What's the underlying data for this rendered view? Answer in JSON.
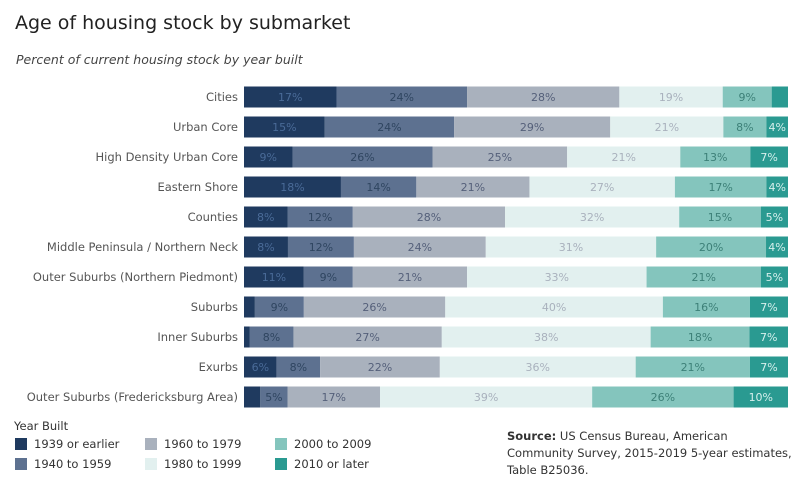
{
  "header": {
    "title": "Age of housing stock by submarket",
    "subtitle": "Percent of current housing stock by year built"
  },
  "legend": {
    "title": "Year Built"
  },
  "source": {
    "label": "Source:",
    "text": " US Census Bureau, American Community Survey, 2015-2019 5-year estimates, Table B25036."
  },
  "chart_data": {
    "type": "bar",
    "orientation": "horizontal",
    "stacked": true,
    "categories": [
      "Cities",
      "Urban Core",
      "High Density Urban Core",
      "Eastern Shore",
      "Counties",
      "Middle Peninsula / Northern Neck",
      "Outer Suburbs (Northern Piedmont)",
      "Suburbs",
      "Inner Suburbs",
      "Exurbs",
      "Outer Suburbs (Fredericksburg Area)"
    ],
    "unit": "%",
    "xlim": [
      0,
      100
    ],
    "legend_position": "bottom-left",
    "series": [
      {
        "name": "1939 or earlier",
        "color": "#1f3a5f",
        "label_color": "#4a6b98",
        "values": [
          17,
          15,
          9,
          18,
          8,
          8,
          11,
          2,
          1,
          6,
          3
        ],
        "labels": [
          "17%",
          "15%",
          "9%",
          "18%",
          "8%",
          "8%",
          "11%",
          "",
          "",
          "6%",
          ""
        ]
      },
      {
        "name": "1940 to 1959",
        "color": "#5d7190",
        "label_color": "#2f4560",
        "values": [
          24,
          24,
          26,
          14,
          12,
          12,
          9,
          9,
          8,
          8,
          5
        ],
        "labels": [
          "24%",
          "24%",
          "26%",
          "14%",
          "12%",
          "12%",
          "9%",
          "9%",
          "8%",
          "8%",
          "5%"
        ]
      },
      {
        "name": "1960 to 1979",
        "color": "#a9b1bd",
        "label_color": "#55607a",
        "values": [
          28,
          29,
          25,
          21,
          28,
          24,
          21,
          26,
          27,
          22,
          17
        ],
        "labels": [
          "28%",
          "29%",
          "25%",
          "21%",
          "28%",
          "24%",
          "21%",
          "26%",
          "27%",
          "22%",
          "17%"
        ]
      },
      {
        "name": "1980 to 1999",
        "color": "#e2f0ef",
        "label_color": "#a9b1bd",
        "values": [
          19,
          21,
          21,
          27,
          32,
          31,
          33,
          40,
          38,
          36,
          39
        ],
        "labels": [
          "19%",
          "21%",
          "21%",
          "27%",
          "32%",
          "31%",
          "33%",
          "40%",
          "38%",
          "36%",
          "39%"
        ]
      },
      {
        "name": "2000 to 2009",
        "color": "#84c5bd",
        "label_color": "#3d8078",
        "values": [
          9,
          8,
          13,
          17,
          15,
          20,
          21,
          16,
          18,
          21,
          26
        ],
        "labels": [
          "9%",
          "8%",
          "13%",
          "17%",
          "15%",
          "20%",
          "21%",
          "16%",
          "18%",
          "21%",
          "26%"
        ]
      },
      {
        "name": "2010 or later",
        "color": "#2a9a91",
        "label_color": "#d6efec",
        "values": [
          3,
          4,
          7,
          4,
          5,
          4,
          5,
          7,
          7,
          7,
          10
        ],
        "labels": [
          "",
          "4%",
          "7%",
          "4%",
          "5%",
          "4%",
          "5%",
          "7%",
          "7%",
          "7%",
          "10%"
        ]
      }
    ]
  }
}
